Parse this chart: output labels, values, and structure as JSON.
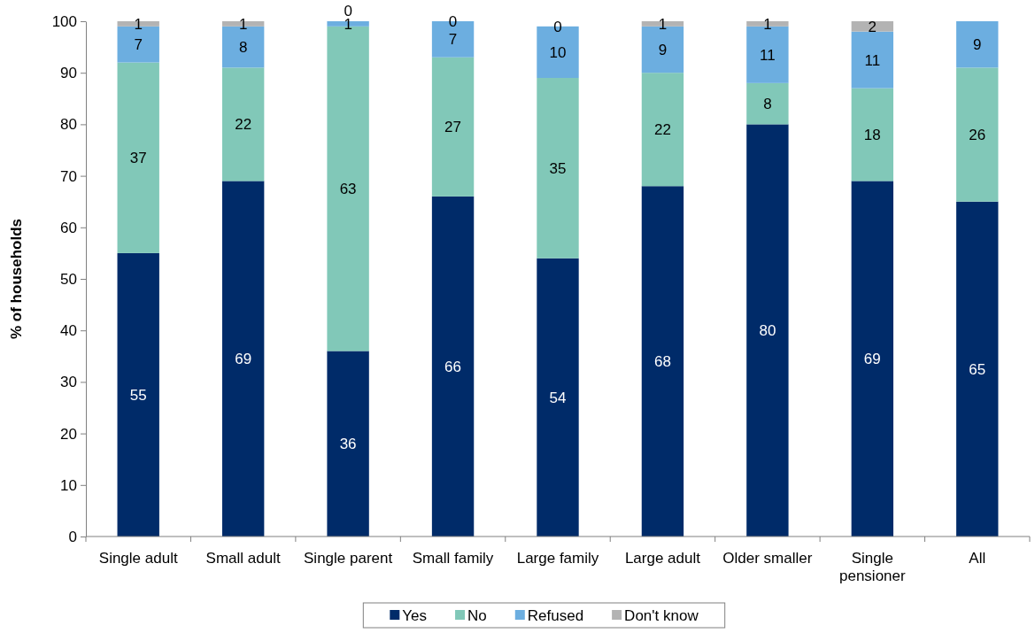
{
  "chart_data": {
    "type": "bar",
    "ylabel": "% of households",
    "categories": [
      "Single adult",
      "Small adult",
      "Single parent",
      "Small family",
      "Large family",
      "Large adult",
      "Older smaller",
      "Single pensioner",
      "All"
    ],
    "series": [
      {
        "name": "Yes",
        "color": "#002b69",
        "values": [
          55,
          69,
          36,
          66,
          54,
          68,
          80,
          69,
          65
        ]
      },
      {
        "name": "No",
        "color": "#81c8b8",
        "values": [
          37,
          22,
          63,
          27,
          35,
          22,
          8,
          18,
          26
        ]
      },
      {
        "name": "Refused",
        "color": "#6caee0",
        "values": [
          7,
          8,
          1,
          7,
          10,
          9,
          11,
          11,
          9
        ]
      },
      {
        "name": "Don't know",
        "color": "#b3b3b3",
        "values": [
          1,
          1,
          0,
          0,
          0,
          1,
          1,
          2,
          null
        ]
      }
    ],
    "stacked": true,
    "ylim": [
      0,
      100
    ],
    "yticks": [
      0,
      10,
      20,
      30,
      40,
      50,
      60,
      70,
      80,
      90,
      100
    ],
    "data_labels": true,
    "legend": "bottom",
    "grid": false
  }
}
